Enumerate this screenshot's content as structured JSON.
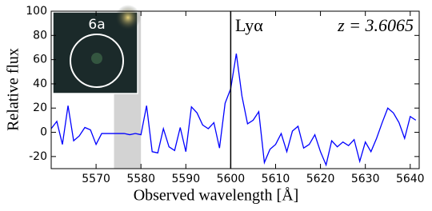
{
  "chart_data": {
    "type": "line",
    "xlabel": "Observed wavelength [Å]",
    "ylabel": "Relative flux",
    "annotations": [
      "Lyα",
      "z = 3.6065"
    ],
    "inset_label": "6a",
    "x": [
      5560,
      5561.25,
      5562.5,
      5563.75,
      5565,
      5566.25,
      5567.5,
      5568.75,
      5570,
      5571.25,
      5572.5,
      5573.75,
      5575,
      5576.25,
      5577.5,
      5578.75,
      5580,
      5581.25,
      5582.5,
      5583.75,
      5585,
      5586.25,
      5587.5,
      5588.75,
      5590,
      5591.25,
      5592.5,
      5593.75,
      5595,
      5596.25,
      5597.5,
      5598.75,
      5600,
      5601.25,
      5602.5,
      5603.75,
      5605,
      5606.25,
      5607.5,
      5608.75,
      5610,
      5611.25,
      5612.5,
      5613.75,
      5615,
      5616.25,
      5617.5,
      5618.75,
      5620,
      5621.25,
      5622.5,
      5623.75,
      5625,
      5626.25,
      5627.5,
      5628.75,
      5630,
      5631.25,
      5632.5,
      5633.75,
      5635,
      5636.25,
      5637.5,
      5638.75,
      5640,
      5641.25
    ],
    "values": [
      3,
      9,
      -10,
      22,
      -7,
      -3,
      4,
      2,
      -10,
      -1,
      -1,
      -1,
      -1,
      -1,
      -2,
      -1,
      -2,
      22,
      -16,
      -17,
      3,
      -12,
      -15,
      4,
      -16,
      21,
      16,
      6,
      3,
      8,
      -13,
      24,
      36,
      65,
      30,
      7,
      10,
      17,
      -25,
      -14,
      -10,
      -1,
      -16,
      1,
      5,
      -13,
      -10,
      -2,
      -16,
      -27,
      -7,
      -12,
      -8,
      -11,
      -6,
      -24,
      -8,
      -16,
      -5,
      8,
      20,
      16,
      8,
      -5,
      13,
      10
    ],
    "color": "#0000ff",
    "vline": 5600,
    "shade": [
      5574,
      5580
    ],
    "xlim": [
      5560,
      5642
    ],
    "ylim": [
      -30,
      100
    ],
    "xticks": [
      5570,
      5580,
      5590,
      5600,
      5610,
      5620,
      5630,
      5640
    ],
    "yticks": [
      -20,
      0,
      20,
      40,
      60,
      80,
      100
    ]
  }
}
